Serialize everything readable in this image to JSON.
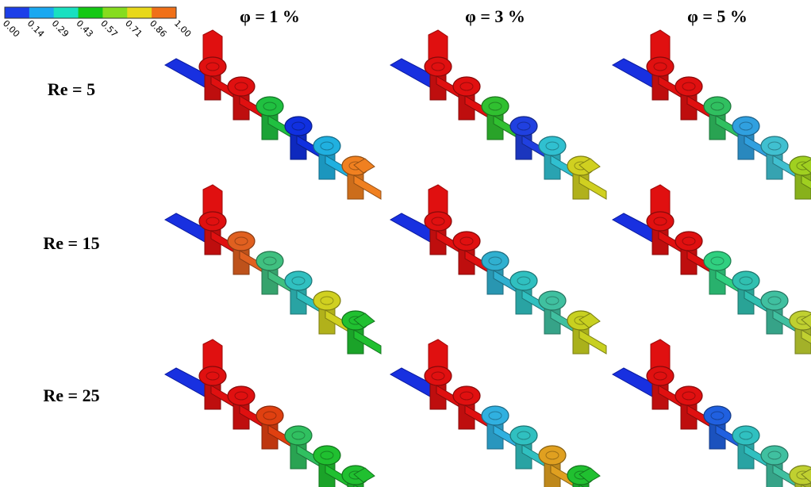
{
  "colorbar": {
    "ticks": [
      "0.00",
      "0.14",
      "0.29",
      "0.43",
      "0.57",
      "0.71",
      "0.86",
      "1.00"
    ]
  },
  "columns": [
    "φ = 1 %",
    "φ = 3 %",
    "φ = 5 %"
  ],
  "rows": [
    "Re = 5",
    "Re = 15",
    "Re = 25"
  ]
}
